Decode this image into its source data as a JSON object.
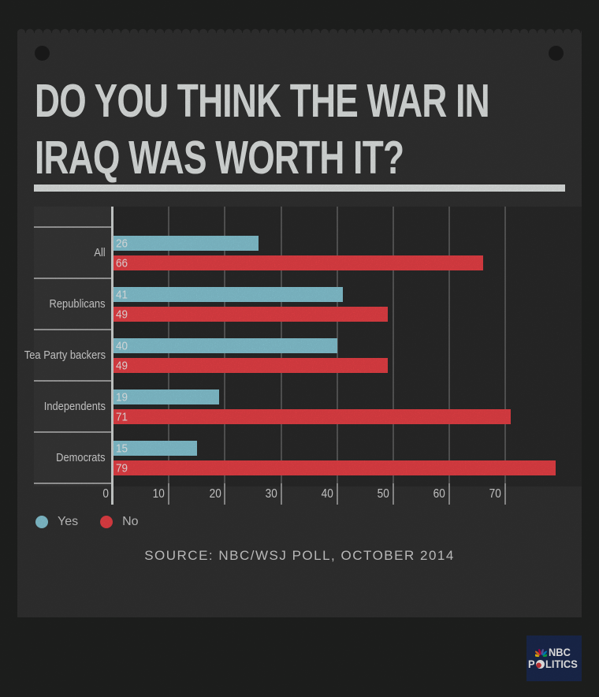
{
  "title": {
    "line1": "DO YOU THINK THE WAR IN",
    "line2": "IRAQ WAS WORTH IT?"
  },
  "chart_data": {
    "type": "bar",
    "orientation": "horizontal",
    "title": "DO YOU THINK THE WAR IN IRAQ WAS WORTH IT?",
    "categories": [
      "All",
      "Republicans",
      "Tea Party backers",
      "Independents",
      "Democrats"
    ],
    "series": [
      {
        "name": "Yes",
        "color": "#8ed1e0",
        "values": [
          26,
          41,
          40,
          19,
          15
        ]
      },
      {
        "name": "No",
        "color": "#f5444a",
        "values": [
          66,
          49,
          49,
          71,
          79
        ]
      }
    ],
    "x_ticks": [
      0,
      10,
      20,
      30,
      40,
      50,
      60,
      70
    ],
    "xlim": [
      0,
      83.6
    ],
    "grid": true,
    "bar_value_labels": true,
    "legend_position": "bottom-left"
  },
  "legend": {
    "items": [
      {
        "label": "Yes",
        "color": "#8ed1e0"
      },
      {
        "label": "No",
        "color": "#f5444a"
      }
    ]
  },
  "source": {
    "text": "SOURCE: NBC/WSJ POLL, OCTOBER 2014"
  },
  "logo": {
    "line1": "NBC",
    "line2_prefix": "P",
    "line2_suffix": "LITICS",
    "bg": "#1c2b52",
    "peacock_colors": [
      "#fccc12",
      "#f37021",
      "#cc004c",
      "#6460aa",
      "#0089d0",
      "#0db14b"
    ]
  },
  "colors": {
    "background": "#222322",
    "panel": "#343434",
    "plot_bg": "#2c2c2c",
    "label_col": "#3a3a3a",
    "grid": "#5d5d5d",
    "axis": "#dfe3e2",
    "separator": "#a8a8a8",
    "title_text": "#edf1f0"
  }
}
